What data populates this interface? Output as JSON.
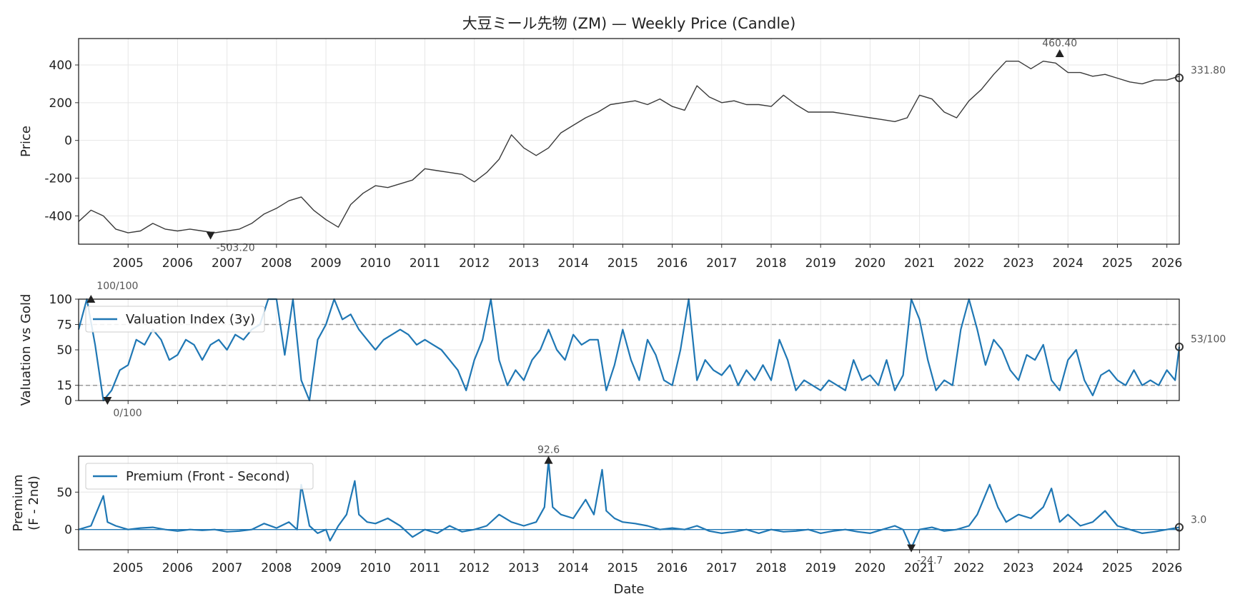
{
  "chart_data": [
    {
      "type": "line",
      "title": "大豆ミール先物 (ZM) — Weekly Price (Candle)",
      "xlabel": "",
      "ylabel": "Price",
      "ylim": [
        -550,
        540
      ],
      "yticks": [
        -400,
        -200,
        0,
        200,
        400
      ],
      "xticks": [
        "2005",
        "2006",
        "2007",
        "2008",
        "2009",
        "2010",
        "2011",
        "2012",
        "2013",
        "2014",
        "2015",
        "2016",
        "2017",
        "2018",
        "2019",
        "2020",
        "2021",
        "2022",
        "2023",
        "2024",
        "2025",
        "2026"
      ],
      "xlim": [
        "2004-01",
        "2026-04"
      ],
      "grid": true,
      "color": "#3a3a3a",
      "series": [
        {
          "x": [
            "2004-01",
            "2004-04",
            "2004-07",
            "2004-10",
            "2005-01",
            "2005-04",
            "2005-07",
            "2005-10",
            "2006-01",
            "2006-04",
            "2006-07",
            "2006-10",
            "2007-01",
            "2007-04",
            "2007-07",
            "2007-10",
            "2008-01",
            "2008-04",
            "2008-07",
            "2008-10",
            "2009-01",
            "2009-04",
            "2009-07",
            "2009-10",
            "2010-01",
            "2010-04",
            "2010-07",
            "2010-10",
            "2011-01",
            "2011-04",
            "2011-07",
            "2011-10",
            "2012-01",
            "2012-04",
            "2012-07",
            "2012-10",
            "2013-01",
            "2013-04",
            "2013-07",
            "2013-10",
            "2014-01",
            "2014-04",
            "2014-07",
            "2014-10",
            "2015-01",
            "2015-04",
            "2015-07",
            "2015-10",
            "2016-01",
            "2016-04",
            "2016-07",
            "2016-10",
            "2017-01",
            "2017-04",
            "2017-07",
            "2017-10",
            "2018-01",
            "2018-04",
            "2018-07",
            "2018-10",
            "2019-01",
            "2019-04",
            "2019-07",
            "2019-10",
            "2020-01",
            "2020-04",
            "2020-07",
            "2020-10",
            "2021-01",
            "2021-04",
            "2021-07",
            "2021-10",
            "2022-01",
            "2022-04",
            "2022-07",
            "2022-10",
            "2023-01",
            "2023-04",
            "2023-07",
            "2023-10",
            "2024-01",
            "2024-04",
            "2024-07",
            "2024-10",
            "2025-01",
            "2025-04",
            "2025-07",
            "2025-10",
            "2026-01",
            "2026-04"
          ],
          "values": [
            -430,
            -370,
            -400,
            -470,
            -490,
            -480,
            -440,
            -470,
            -480,
            -470,
            -480,
            -490,
            -480,
            -470,
            -440,
            -390,
            -360,
            -320,
            -300,
            -370,
            -420,
            -460,
            -340,
            -280,
            -240,
            -250,
            -230,
            -210,
            -150,
            -160,
            -170,
            -180,
            -220,
            -170,
            -100,
            30,
            -40,
            -80,
            -40,
            40,
            80,
            120,
            150,
            190,
            200,
            210,
            190,
            220,
            180,
            160,
            290,
            230,
            200,
            210,
            190,
            190,
            180,
            240,
            190,
            150,
            150,
            150,
            140,
            130,
            120,
            110,
            100,
            120,
            240,
            220,
            150,
            120,
            210,
            270,
            350,
            420,
            420,
            380,
            420,
            410,
            360,
            360,
            340,
            350,
            330,
            310,
            300,
            320,
            320,
            340
          ]
        }
      ],
      "annotations": [
        {
          "label": "460.40",
          "x": "2023-11",
          "y": 460.4,
          "kind": "max"
        },
        {
          "label": "-503.20",
          "x": "2006-09",
          "y": -503.2,
          "kind": "min"
        },
        {
          "label": "331.80",
          "x": "2026-04",
          "y": 331.8,
          "kind": "last"
        }
      ]
    },
    {
      "type": "line",
      "title": "",
      "ylabel": "Valuation vs Gold",
      "ylim": [
        0,
        100
      ],
      "yticks": [
        0,
        15,
        50,
        75,
        100
      ],
      "hlines": [
        15,
        75
      ],
      "legend": "top-left",
      "color": "#1f77b4",
      "series": [
        {
          "name": "Valuation Index (3y)",
          "x": [
            "2004-01",
            "2004-03",
            "2004-05",
            "2004-07",
            "2004-09",
            "2004-11",
            "2005-01",
            "2005-03",
            "2005-05",
            "2005-07",
            "2005-09",
            "2005-11",
            "2006-01",
            "2006-03",
            "2006-05",
            "2006-07",
            "2006-09",
            "2006-11",
            "2007-01",
            "2007-03",
            "2007-05",
            "2007-07",
            "2007-09",
            "2007-11",
            "2008-01",
            "2008-03",
            "2008-05",
            "2008-07",
            "2008-09",
            "2008-11",
            "2009-01",
            "2009-03",
            "2009-05",
            "2009-07",
            "2009-09",
            "2009-11",
            "2010-01",
            "2010-03",
            "2010-05",
            "2010-07",
            "2010-09",
            "2010-11",
            "2011-01",
            "2011-03",
            "2011-05",
            "2011-07",
            "2011-09",
            "2011-11",
            "2012-01",
            "2012-03",
            "2012-05",
            "2012-07",
            "2012-09",
            "2012-11",
            "2013-01",
            "2013-03",
            "2013-05",
            "2013-07",
            "2013-09",
            "2013-11",
            "2014-01",
            "2014-03",
            "2014-05",
            "2014-07",
            "2014-09",
            "2014-11",
            "2015-01",
            "2015-03",
            "2015-05",
            "2015-07",
            "2015-09",
            "2015-11",
            "2016-01",
            "2016-03",
            "2016-05",
            "2016-07",
            "2016-09",
            "2016-11",
            "2017-01",
            "2017-03",
            "2017-05",
            "2017-07",
            "2017-09",
            "2017-11",
            "2018-01",
            "2018-03",
            "2018-05",
            "2018-07",
            "2018-09",
            "2018-11",
            "2019-01",
            "2019-03",
            "2019-05",
            "2019-07",
            "2019-09",
            "2019-11",
            "2020-01",
            "2020-03",
            "2020-05",
            "2020-07",
            "2020-09",
            "2020-11",
            "2021-01",
            "2021-03",
            "2021-05",
            "2021-07",
            "2021-09",
            "2021-11",
            "2022-01",
            "2022-03",
            "2022-05",
            "2022-07",
            "2022-09",
            "2022-11",
            "2023-01",
            "2023-03",
            "2023-05",
            "2023-07",
            "2023-09",
            "2023-11",
            "2024-01",
            "2024-03",
            "2024-05",
            "2024-07",
            "2024-09",
            "2024-11",
            "2025-01",
            "2025-03",
            "2025-05",
            "2025-07",
            "2025-09",
            "2025-11",
            "2026-01",
            "2026-03",
            "2026-04"
          ],
          "values": [
            70,
            100,
            55,
            0,
            10,
            30,
            35,
            60,
            55,
            70,
            60,
            40,
            45,
            60,
            55,
            40,
            55,
            60,
            50,
            65,
            60,
            70,
            75,
            100,
            100,
            45,
            100,
            20,
            0,
            60,
            75,
            100,
            80,
            85,
            70,
            60,
            50,
            60,
            65,
            70,
            65,
            55,
            60,
            55,
            50,
            40,
            30,
            10,
            40,
            60,
            100,
            40,
            15,
            30,
            20,
            40,
            50,
            70,
            50,
            40,
            65,
            55,
            60,
            60,
            10,
            35,
            70,
            40,
            20,
            60,
            45,
            20,
            15,
            50,
            100,
            20,
            40,
            30,
            25,
            35,
            15,
            30,
            20,
            35,
            20,
            60,
            40,
            10,
            20,
            15,
            10,
            20,
            15,
            10,
            40,
            20,
            25,
            15,
            40,
            10,
            25,
            100,
            80,
            40,
            10,
            20,
            15,
            70,
            100,
            70,
            35,
            60,
            50,
            30,
            20,
            45,
            40,
            55,
            20,
            10,
            40,
            50,
            20,
            5,
            25,
            30,
            20,
            15,
            30,
            15,
            20,
            15,
            30,
            20,
            53
          ]
        }
      ],
      "annotations": [
        {
          "label": "100/100",
          "x": "2004-04",
          "y": 100,
          "kind": "max"
        },
        {
          "label": "0/100",
          "x": "2004-08",
          "y": 0,
          "kind": "min"
        },
        {
          "label": "53/100",
          "x": "2026-04",
          "y": 53,
          "kind": "last"
        }
      ]
    },
    {
      "type": "line",
      "title": "",
      "xlabel": "Date",
      "ylabel": "Premium\n(F - 2nd)",
      "ylim": [
        -27,
        98
      ],
      "yticks": [
        0,
        50
      ],
      "hlines": [
        0
      ],
      "legend": "top-left",
      "xticks": [
        "2005",
        "2006",
        "2007",
        "2008",
        "2009",
        "2010",
        "2011",
        "2012",
        "2013",
        "2014",
        "2015",
        "2016",
        "2017",
        "2018",
        "2019",
        "2020",
        "2021",
        "2022",
        "2023",
        "2024",
        "2025",
        "2026"
      ],
      "color": "#1f77b4",
      "series": [
        {
          "name": "Premium (Front - Second)",
          "x": [
            "2004-01",
            "2004-04",
            "2004-07",
            "2004-08",
            "2004-10",
            "2005-01",
            "2005-04",
            "2005-07",
            "2005-10",
            "2006-01",
            "2006-04",
            "2006-07",
            "2006-10",
            "2007-01",
            "2007-04",
            "2007-07",
            "2007-10",
            "2008-01",
            "2008-04",
            "2008-06",
            "2008-07",
            "2008-09",
            "2008-11",
            "2009-01",
            "2009-02",
            "2009-04",
            "2009-06",
            "2009-08",
            "2009-09",
            "2009-11",
            "2010-01",
            "2010-04",
            "2010-07",
            "2010-10",
            "2011-01",
            "2011-04",
            "2011-07",
            "2011-10",
            "2012-01",
            "2012-04",
            "2012-07",
            "2012-10",
            "2013-01",
            "2013-04",
            "2013-06",
            "2013-07",
            "2013-08",
            "2013-10",
            "2014-01",
            "2014-04",
            "2014-06",
            "2014-08",
            "2014-09",
            "2014-11",
            "2015-01",
            "2015-04",
            "2015-07",
            "2015-10",
            "2016-01",
            "2016-04",
            "2016-07",
            "2016-10",
            "2017-01",
            "2017-04",
            "2017-07",
            "2017-10",
            "2018-01",
            "2018-04",
            "2018-07",
            "2018-10",
            "2019-01",
            "2019-04",
            "2019-07",
            "2019-10",
            "2020-01",
            "2020-04",
            "2020-07",
            "2020-09",
            "2020-11",
            "2021-01",
            "2021-04",
            "2021-07",
            "2021-10",
            "2022-01",
            "2022-03",
            "2022-06",
            "2022-08",
            "2022-10",
            "2023-01",
            "2023-04",
            "2023-07",
            "2023-09",
            "2023-11",
            "2024-01",
            "2024-04",
            "2024-07",
            "2024-10",
            "2025-01",
            "2025-04",
            "2025-07",
            "2025-10",
            "2026-01",
            "2026-04"
          ],
          "values": [
            0,
            5,
            45,
            10,
            5,
            0,
            2,
            3,
            0,
            -2,
            0,
            -1,
            0,
            -3,
            -2,
            0,
            8,
            2,
            10,
            0,
            60,
            5,
            -5,
            0,
            -15,
            5,
            20,
            65,
            20,
            10,
            8,
            15,
            5,
            -10,
            0,
            -5,
            5,
            -3,
            0,
            5,
            20,
            10,
            5,
            10,
            30,
            92.6,
            30,
            20,
            15,
            40,
            20,
            80,
            25,
            15,
            10,
            8,
            5,
            0,
            2,
            0,
            5,
            -2,
            -5,
            -3,
            0,
            -5,
            0,
            -3,
            -2,
            0,
            -5,
            -2,
            0,
            -3,
            -5,
            0,
            5,
            0,
            -24.7,
            0,
            3,
            -2,
            0,
            5,
            20,
            60,
            30,
            10,
            20,
            15,
            30,
            55,
            10,
            20,
            5,
            10,
            25,
            5,
            0,
            -5,
            -3,
            0,
            3
          ]
        }
      ],
      "annotations": [
        {
          "label": "92.6",
          "x": "2013-07",
          "y": 92.6,
          "kind": "max"
        },
        {
          "label": "-24.7",
          "x": "2020-11",
          "y": -24.7,
          "kind": "min"
        },
        {
          "label": "3.0",
          "x": "2026-04",
          "y": 3.0,
          "kind": "last"
        }
      ]
    }
  ]
}
